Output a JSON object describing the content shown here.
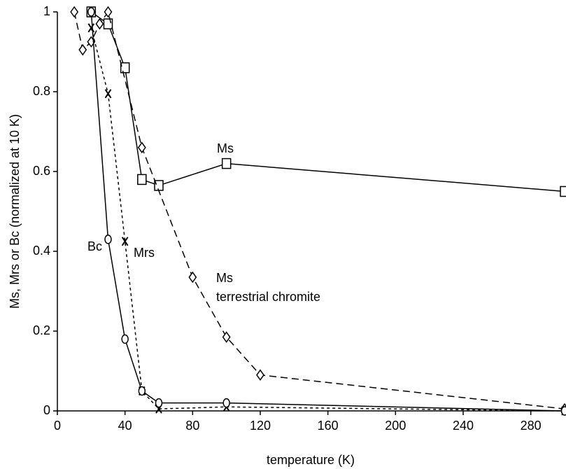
{
  "chart_data": {
    "type": "line",
    "x_label": "temperature (K)",
    "y_label": "Ms, Mrs or Bc (normalized at 10 K)",
    "xlim": [
      0,
      300
    ],
    "xticks": [
      0,
      40,
      80,
      120,
      160,
      200,
      240,
      280
    ],
    "ylim": [
      0,
      1
    ],
    "yticks": [
      0,
      0.2,
      0.4,
      0.6,
      0.8,
      1
    ],
    "grid": false,
    "series": [
      {
        "name": "Ms",
        "color": "#000000",
        "marker": "square",
        "line_style": "solid",
        "x": [
          20,
          30,
          40,
          50,
          60,
          100,
          300
        ],
        "values": [
          1.0,
          0.97,
          0.86,
          0.58,
          0.565,
          0.62,
          0.55
        ]
      },
      {
        "name": "Ms",
        "color": "#000000",
        "marker": "diamond",
        "line_style": "dashed",
        "x": [
          10,
          15,
          20,
          25,
          30,
          50,
          80,
          100,
          120,
          300
        ],
        "values": [
          1.0,
          0.905,
          0.925,
          0.97,
          1.0,
          0.66,
          0.335,
          0.185,
          0.09,
          0.005
        ]
      },
      {
        "name": "Mrs",
        "color": "#000000",
        "marker": "x",
        "line_style": "dotted",
        "x": [
          20,
          30,
          40,
          50,
          60,
          100,
          300
        ],
        "values": [
          0.96,
          0.795,
          0.425,
          0.05,
          0.005,
          0.01,
          0.0
        ]
      },
      {
        "name": "Bc",
        "color": "#000000",
        "marker": "circle",
        "line_style": "solid",
        "x": [
          20,
          30,
          40,
          50,
          60,
          100,
          300
        ],
        "values": [
          1.0,
          0.43,
          0.18,
          0.05,
          0.02,
          0.02,
          0.0
        ]
      }
    ],
    "annotations": [
      "terrestrial chromite"
    ]
  }
}
